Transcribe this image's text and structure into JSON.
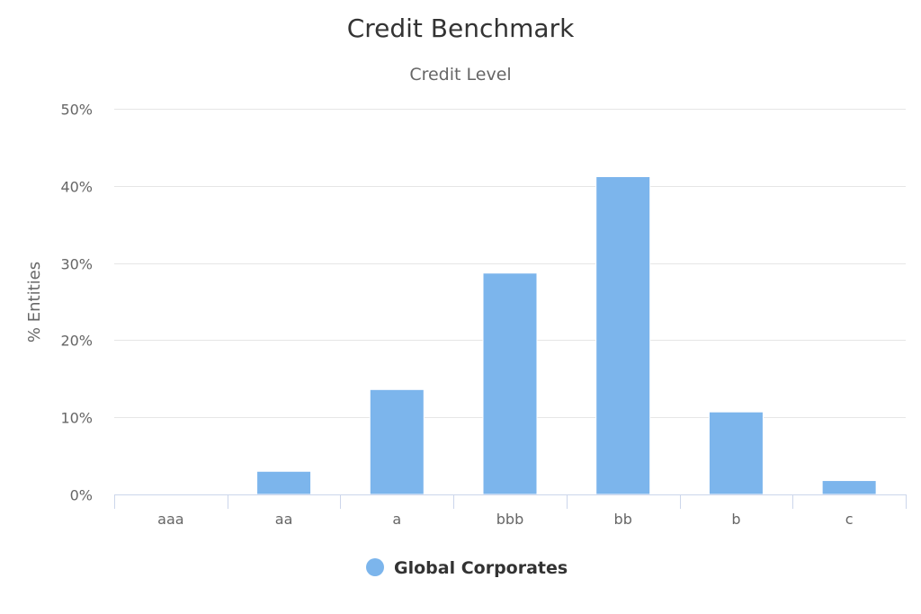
{
  "chart_data": {
    "type": "bar",
    "title": "Credit Benchmark",
    "subtitle": "Credit Level",
    "xlabel": "",
    "ylabel": "% Entities",
    "categories": [
      "aaa",
      "aa",
      "a",
      "bbb",
      "bb",
      "b",
      "c"
    ],
    "series": [
      {
        "name": "Global Corporates",
        "color": "#7cb5ec",
        "values": [
          0,
          3.0,
          13.6,
          28.7,
          41.2,
          10.7,
          1.8
        ]
      }
    ],
    "ylim": [
      0,
      50
    ],
    "yticks": [
      0,
      10,
      20,
      30,
      40,
      50
    ],
    "ytick_labels": [
      "0%",
      "10%",
      "20%",
      "30%",
      "40%",
      "50%"
    ],
    "grid": true,
    "legend": "bottom-center"
  }
}
